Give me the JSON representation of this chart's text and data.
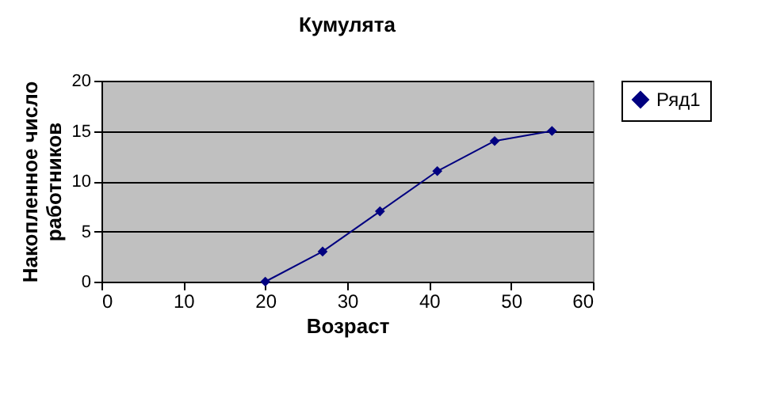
{
  "chart_data": {
    "type": "line",
    "title": "Кумулята",
    "xlabel": "Возраст",
    "ylabel": "Накопленное число работников",
    "x": [
      20,
      27,
      34,
      41,
      48,
      55
    ],
    "series": [
      {
        "name": "Ряд1",
        "color": "#000080",
        "values": [
          0,
          3,
          7,
          11,
          14,
          15
        ]
      }
    ],
    "xlim": [
      0,
      60
    ],
    "xticks": [
      0,
      10,
      20,
      30,
      40,
      50,
      60
    ],
    "ylim": [
      0,
      20
    ],
    "yticks": [
      0,
      5,
      10,
      15,
      20
    ],
    "grid": "y",
    "legend": "right",
    "marker": "diamond",
    "line_style": "solid"
  }
}
